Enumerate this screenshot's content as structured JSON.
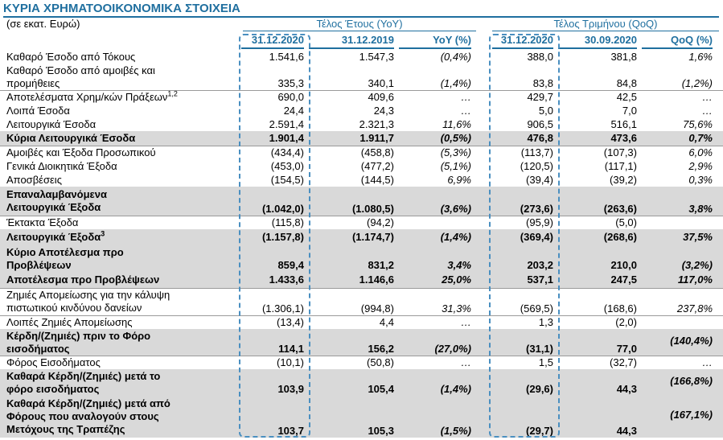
{
  "title": "ΚΥΡΙΑ ΧΡΗΜΑΤΟΟΙΚΟΝΟΜΙΚΑ ΣΤΟΙΧΕΙΑ",
  "units": "(σε εκατ. Ευρώ)",
  "groups": {
    "yoy": "Τέλος Έτους (YoY)",
    "qoq": "Τέλος Τριμήνου (QoQ)"
  },
  "headers": [
    "31.12.2020",
    "31.12.2019",
    "YoY (%)",
    "31.12.2020",
    "30.09.2020",
    "QoQ (%)"
  ],
  "rows": [
    {
      "l1": "Καθαρό Έσοδο από Τόκους",
      "v": [
        "1.541,6",
        "1.547,3",
        "(0,4%)",
        "388,0",
        "381,8",
        "1,6%"
      ]
    },
    {
      "l1": "Καθαρό Έσοδο από αμοιβές και",
      "l2": "προμήθειες",
      "v": [
        "335,3",
        "340,1",
        "(1,4%)",
        "83,8",
        "84,8",
        "(1,2%)"
      ]
    },
    {
      "l1": "Αποτελέσματα Χρημ/κών Πράξεων",
      "sup": "1,2",
      "v": [
        "690,0",
        "409,6",
        "…",
        "429,7",
        "42,5",
        "…"
      ]
    },
    {
      "l1": "Λοιπά Έσοδα",
      "v": [
        "24,4",
        "24,3",
        "…",
        "5,0",
        "7,0",
        "…"
      ]
    },
    {
      "l1": "Λειτουργικά Έσοδα",
      "v": [
        "2.591,4",
        "2.321,3",
        "11,6%",
        "906,5",
        "516,1",
        "75,6%"
      ]
    },
    {
      "l1": "Κύρια Λειτουργικά Έσοδα",
      "v": [
        "1.901,4",
        "1.911,7",
        "(0,5%)",
        "476,8",
        "473,6",
        "0,7%"
      ]
    },
    {
      "l1": "Αμοιβές και Έξοδα Προσωπικού",
      "v": [
        "(434,4)",
        "(458,8)",
        "(5,3%)",
        "(113,7)",
        "(107,3)",
        "6,0%"
      ]
    },
    {
      "l1": "Γενικά Διοικητικά Έξοδα",
      "v": [
        "(453,0)",
        "(477,2)",
        "(5,1%)",
        "(120,5)",
        "(117,1)",
        "2,9%"
      ]
    },
    {
      "l1": "Αποσβέσεις",
      "v": [
        "(154,5)",
        "(144,5)",
        "6,9%",
        "(39,4)",
        "(39,2)",
        "0,3%"
      ]
    },
    {
      "l1": "Επαναλαμβανόμενα",
      "l2": "Λειτουργικά Έξοδα",
      "v": [
        "(1.042,0)",
        "(1.080,5)",
        "(3,6%)",
        "(273,6)",
        "(263,6)",
        "3,8%"
      ]
    },
    {
      "l1": "Έκτακτα Έξοδα",
      "v": [
        "(115,8)",
        "(94,2)",
        "",
        "(95,9)",
        "(5,0)",
        ""
      ]
    },
    {
      "l1": "Λειτουργικά Έξοδα",
      "sup": "3",
      "v": [
        "(1.157,8)",
        "(1.174,7)",
        "(1,4%)",
        "(369,4)",
        "(268,6)",
        "37,5%"
      ]
    },
    {
      "l1": "Κύριο Αποτέλεσμα προ",
      "l2": "Προβλέψεων",
      "v": [
        "859,4",
        "831,2",
        "3,4%",
        "203,2",
        "210,0",
        "(3,2%)"
      ]
    },
    {
      "l1": "Αποτέλεσμα προ Προβλέψεων",
      "v": [
        "1.433,6",
        "1.146,6",
        "25,0%",
        "537,1",
        "247,5",
        "117,0%"
      ]
    },
    {
      "l1": "Ζημιές Απομείωσης για την κάλυψη",
      "l2": "πιστωτικού κινδύνου δανείων",
      "v": [
        "(1.306,1)",
        "(994,8)",
        "31,3%",
        "(569,5)",
        "(168,6)",
        "237,8%"
      ]
    },
    {
      "l1": "Λοιπές Ζημιές Απομείωσης",
      "v": [
        "(13,4)",
        "4,4",
        "…",
        "1,3",
        "(2,0)",
        ""
      ]
    },
    {
      "l1": "Κέρδη/(Ζημιές) πριν το Φόρο",
      "l2": "εισοδήματος",
      "v": [
        "114,1",
        "156,2",
        "(27,0%)",
        "(31,1)",
        "77,0",
        "(140,4%)"
      ]
    },
    {
      "l1": "Φόρος Εισοδήματος",
      "v": [
        "(10,1)",
        "(50,8)",
        "…",
        "1,5",
        "(32,7)",
        "…"
      ]
    },
    {
      "l1": "Καθαρά Κέρδη/(Ζημιές) μετά το",
      "l2": "φόρο εισοδήματος",
      "v": [
        "103,9",
        "105,4",
        "(1,4%)",
        "(29,6)",
        "44,3",
        "(166,8%)"
      ]
    },
    {
      "l1": "Καθαρά Κέρδη/(Ζημιές) μετά από",
      "l2": "Φόρους που αναλογούν στους",
      "l3": "Μετόχους της Τραπέζης",
      "v": [
        "103,7",
        "105,3",
        "(1,5%)",
        "(29,7)",
        "44,3",
        "(167,1%)"
      ]
    }
  ]
}
